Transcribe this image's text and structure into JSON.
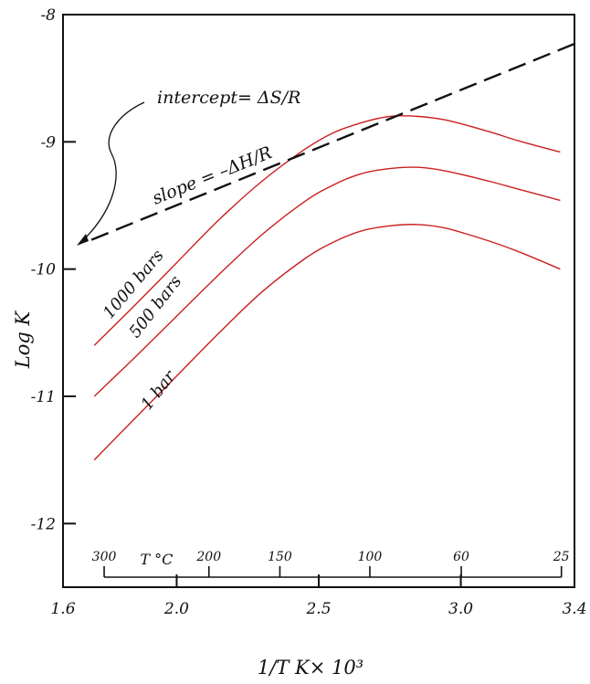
{
  "chart_data": {
    "type": "line",
    "xlabel": "1/T  K× 10³",
    "ylabel": "Log K",
    "xlim": [
      1.6,
      3.4
    ],
    "ylim": [
      -12.5,
      -8
    ],
    "x_ticks": [
      {
        "value": 1.6,
        "label": "1.6"
      },
      {
        "value": 2.0,
        "label": "2.0"
      },
      {
        "value": 2.5,
        "label": "2.5"
      },
      {
        "value": 3.0,
        "label": "3.0"
      },
      {
        "value": 3.4,
        "label": "3.4"
      }
    ],
    "y_ticks": [
      {
        "value": -8,
        "label": "-8"
      },
      {
        "value": -9,
        "label": "-9"
      },
      {
        "value": -10,
        "label": "-10"
      },
      {
        "value": -11,
        "label": "-11"
      },
      {
        "value": -12,
        "label": "-12"
      }
    ],
    "temperature_axis": {
      "title": "T °C",
      "ticks": [
        {
          "celsius": 300,
          "label": "300"
        },
        {
          "celsius": 200,
          "label": "200"
        },
        {
          "celsius": 150,
          "label": "150"
        },
        {
          "celsius": 100,
          "label": "100"
        },
        {
          "celsius": 60,
          "label": "60"
        },
        {
          "celsius": 25,
          "label": "25"
        }
      ]
    },
    "series": [
      {
        "name": "1000 bars",
        "color": "#cc1f1f",
        "x": [
          1.71,
          1.85,
          2.0,
          2.15,
          2.3,
          2.45,
          2.55,
          2.65,
          2.75,
          2.85,
          2.95,
          3.1,
          3.2,
          3.35
        ],
        "y": [
          -10.6,
          -10.29,
          -9.95,
          -9.61,
          -9.31,
          -9.06,
          -8.93,
          -8.85,
          -8.8,
          -8.8,
          -8.83,
          -8.92,
          -8.99,
          -9.08
        ]
      },
      {
        "name": "500 bars",
        "color": "#cc1f1f",
        "x": [
          1.71,
          1.85,
          2.0,
          2.15,
          2.3,
          2.45,
          2.55,
          2.65,
          2.75,
          2.85,
          2.95,
          3.1,
          3.2,
          3.35
        ],
        "y": [
          -11.0,
          -10.7,
          -10.37,
          -10.04,
          -9.73,
          -9.47,
          -9.34,
          -9.25,
          -9.21,
          -9.2,
          -9.23,
          -9.31,
          -9.37,
          -9.46
        ]
      },
      {
        "name": "1 bar",
        "color": "#cc1f1f",
        "x": [
          1.71,
          1.85,
          2.0,
          2.15,
          2.3,
          2.45,
          2.55,
          2.65,
          2.75,
          2.85,
          2.95,
          3.1,
          3.2,
          3.35
        ],
        "y": [
          -11.5,
          -11.18,
          -10.84,
          -10.5,
          -10.18,
          -9.92,
          -9.79,
          -9.7,
          -9.66,
          -9.65,
          -9.68,
          -9.78,
          -9.86,
          -10.0
        ]
      }
    ],
    "tangent_line": {
      "style": "dashed",
      "color": "#111111",
      "x": [
        1.7,
        3.4
      ],
      "y": [
        -9.77,
        -8.23
      ]
    },
    "annotations": {
      "intercept": "intercept= ΔS/R",
      "slope": "slope = –ΔH/R"
    },
    "grid": false,
    "legend": "none"
  }
}
